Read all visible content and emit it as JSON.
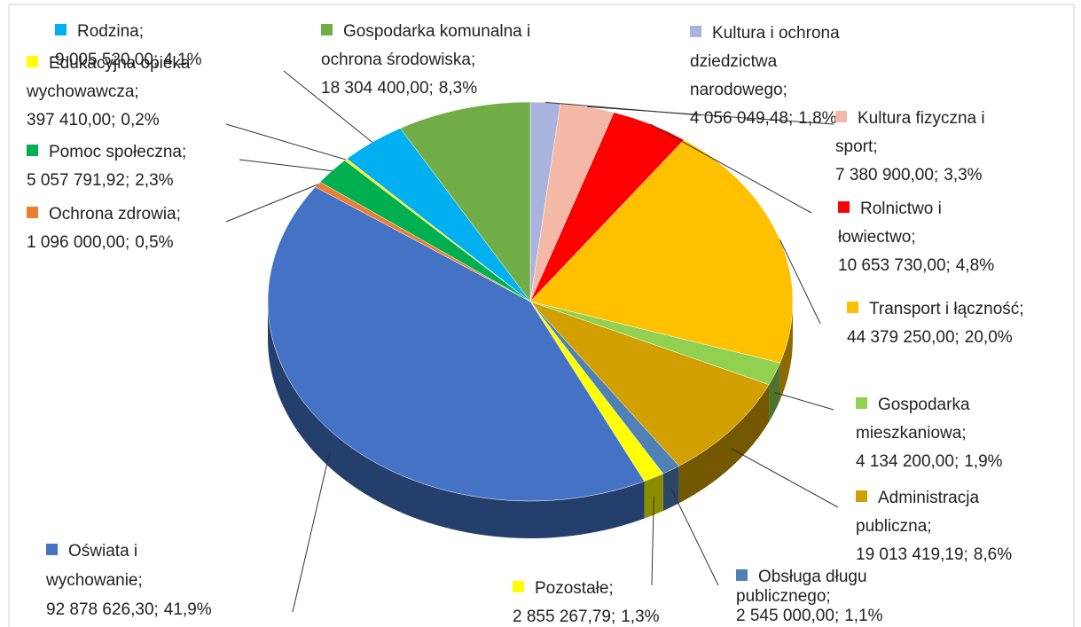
{
  "chart_data": {
    "type": "pie",
    "categories": [
      "Kultura i ochrona dziedzictwa narodowego;",
      "Kultura fizyczna i sport;",
      "Rolnictwo i łowiectwo;",
      "Transport i łączność;",
      "Gospodarka mieszkaniowa;",
      "Administracja publiczna;",
      "Obsługa długu publicznego;",
      "Pozostałe;",
      "Oświata i wychowanie;",
      "Ochrona zdrowia;",
      "Pomoc społeczna;",
      "Edukacyjna opieka wychowawcza;",
      "Rodzina;",
      "Gospodarka komunalna i ochrona środowiska;"
    ],
    "values": [
      4056049.48,
      7380900.0,
      10653730.0,
      44379250.0,
      4134200.0,
      19013419.19,
      2545000.0,
      2855267.79,
      92878626.3,
      1096000.0,
      5057791.92,
      397410.0,
      9005520.0,
      18304400.0
    ],
    "value_labels": [
      "4 056 049,48;",
      "7 380 900,00;",
      "10 653 730,00;",
      "44 379 250,00;",
      "4 134 200,00;",
      "19 013 419,19;",
      "2 545 000,00;",
      "2 855 267,79;",
      "92 878 626,30;",
      "1 096 000,00;",
      "5 057 791,92;",
      "397 410,00;",
      "9 005 520,00;",
      "18 304 400,00;"
    ],
    "percents": [
      1.8,
      3.3,
      4.8,
      20.0,
      1.9,
      8.6,
      1.1,
      1.3,
      41.9,
      0.5,
      2.3,
      0.2,
      4.1,
      8.3
    ],
    "percent_labels": [
      "1,8%",
      "3,3%",
      "4,8%",
      "20,0%",
      "1,9%",
      "8,6%",
      "1,1%",
      "1,3%",
      "41,9%",
      "0,5%",
      "2,3%",
      "0,2%",
      "4,1%",
      "8,3%"
    ],
    "colors": [
      "#a9b4de",
      "#f4b9a6",
      "#ff0000",
      "#ffc000",
      "#92d050",
      "#d1a000",
      "#4f81b4",
      "#ffff00",
      "#4472c4",
      "#ed7d31",
      "#00b050",
      "#ffff00",
      "#00b0f0",
      "#70ad47"
    ]
  }
}
